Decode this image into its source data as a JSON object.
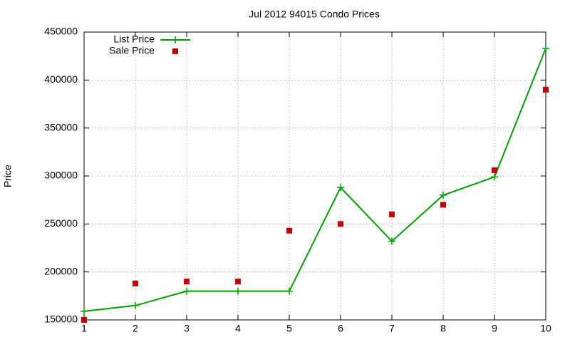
{
  "chart_data": {
    "type": "line",
    "title": "Jul 2012 94015 Condo Prices",
    "y_label": "Price",
    "x": [
      1,
      2,
      3,
      4,
      5,
      6,
      7,
      8,
      9,
      10
    ],
    "series": [
      {
        "name": "List Price",
        "color": "#00a000",
        "line": true,
        "marker": "plus",
        "values": [
          159000,
          165000,
          180000,
          180000,
          180000,
          288000,
          232000,
          280000,
          299000,
          433000
        ]
      },
      {
        "name": "Sale Price",
        "color": "#c00000",
        "line": false,
        "marker": "square",
        "values": [
          150000,
          188000,
          190000,
          190000,
          243000,
          250000,
          260000,
          270000,
          306000,
          390000
        ]
      }
    ],
    "xlim": [
      1,
      10
    ],
    "xticks": [
      1,
      2,
      3,
      4,
      5,
      6,
      7,
      8,
      9,
      10
    ],
    "ylim": [
      150000,
      450000
    ],
    "yticks": [
      150000,
      200000,
      250000,
      300000,
      350000,
      400000,
      450000
    ],
    "grid": true,
    "legend": "top-left"
  }
}
